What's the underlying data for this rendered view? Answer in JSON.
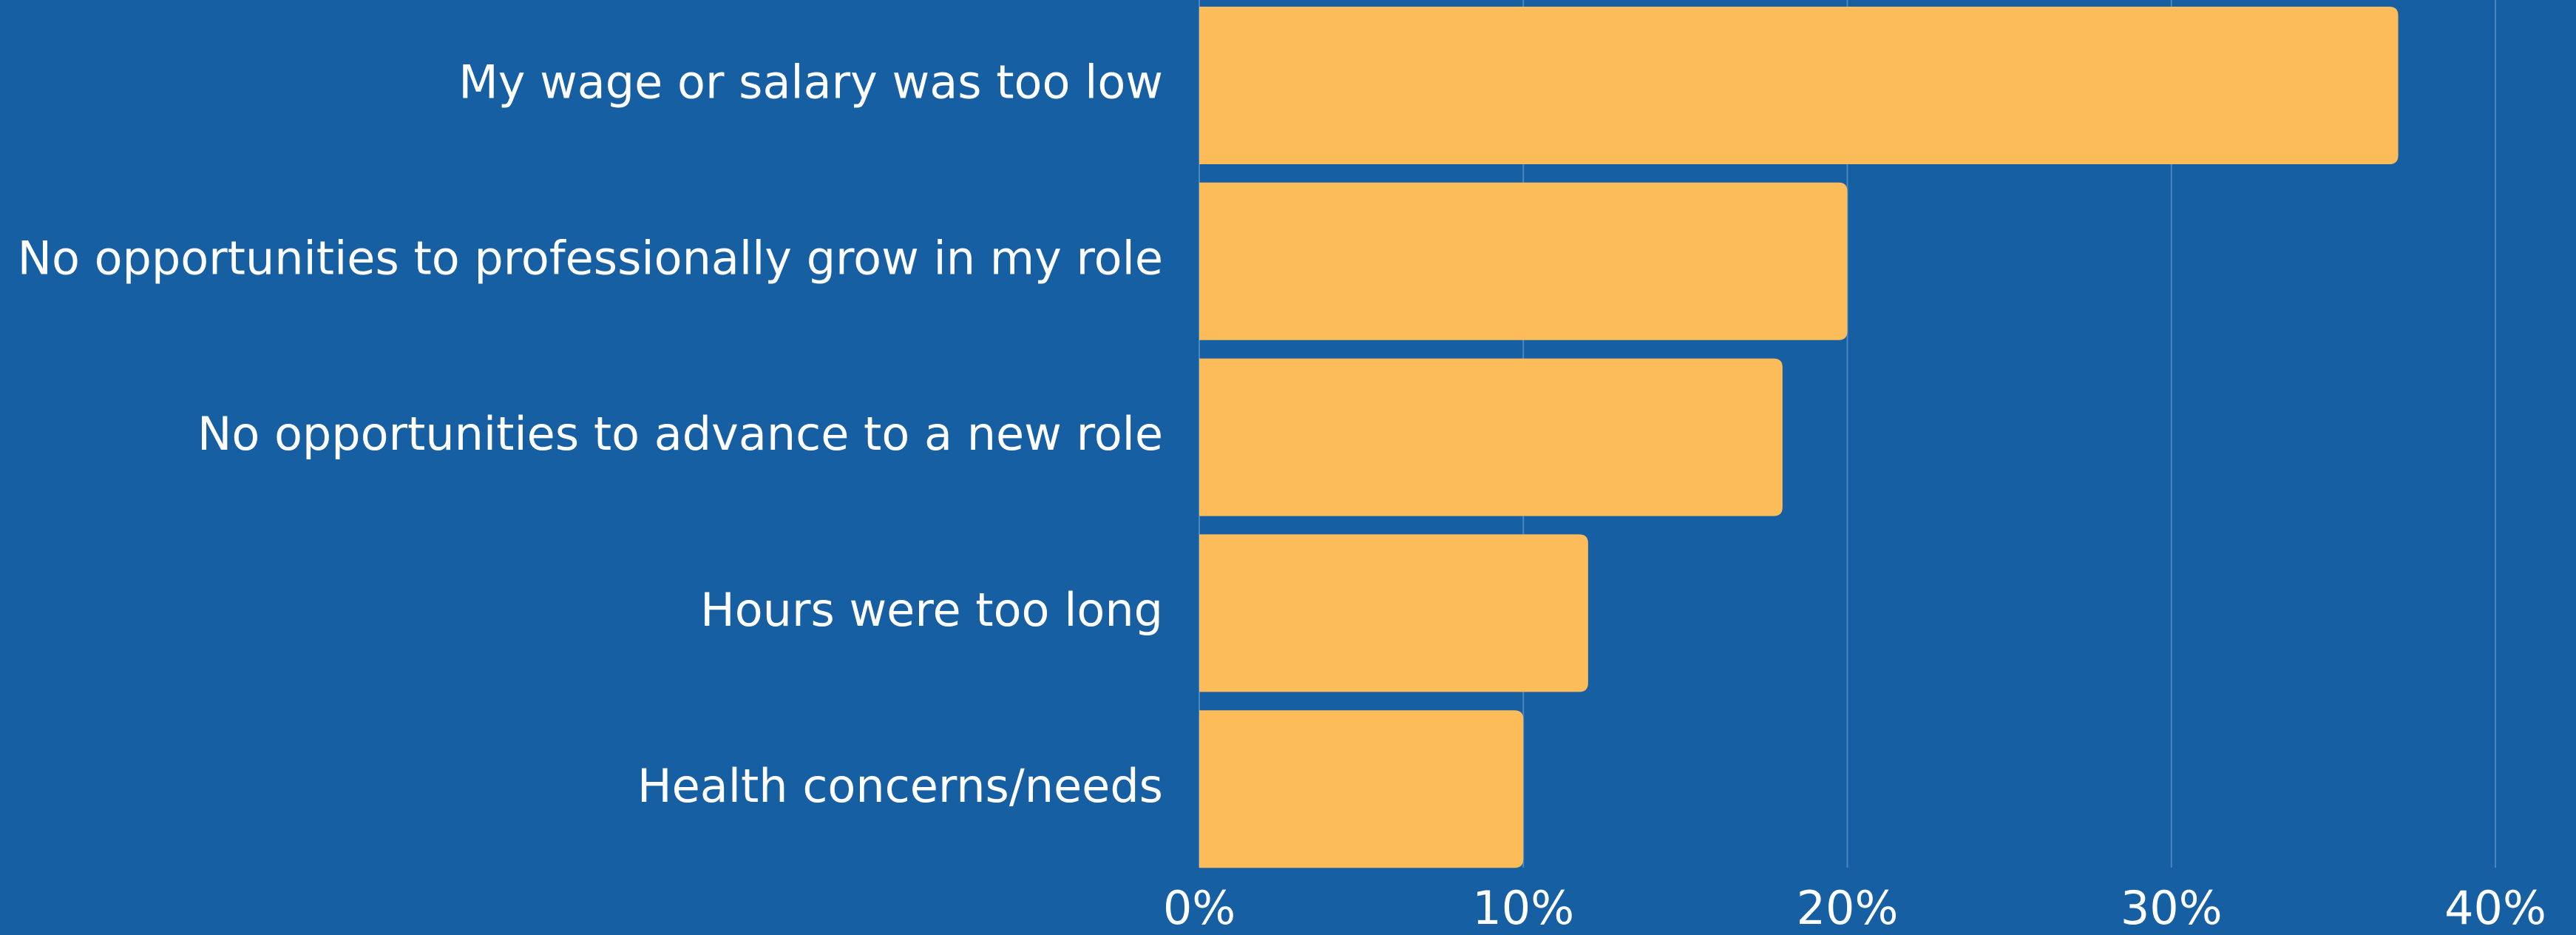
{
  "chart_data": {
    "type": "barh",
    "categories": [
      "My wage or salary was too low",
      "No opportunities to professionally grow in my role",
      "No opportunities to advance to a new role",
      "Hours were too long",
      "Health concerns/needs"
    ],
    "values": [
      37,
      20,
      18,
      12,
      10
    ],
    "color": "#fdbc5a",
    "xlim": [
      0,
      40
    ],
    "xticks": [
      {
        "value": 0,
        "label": "0%"
      },
      {
        "value": 10,
        "label": "10%"
      },
      {
        "value": 20,
        "label": "20%"
      },
      {
        "value": 30,
        "label": "30%"
      },
      {
        "value": 40,
        "label": "40%"
      }
    ],
    "grid": true
  }
}
